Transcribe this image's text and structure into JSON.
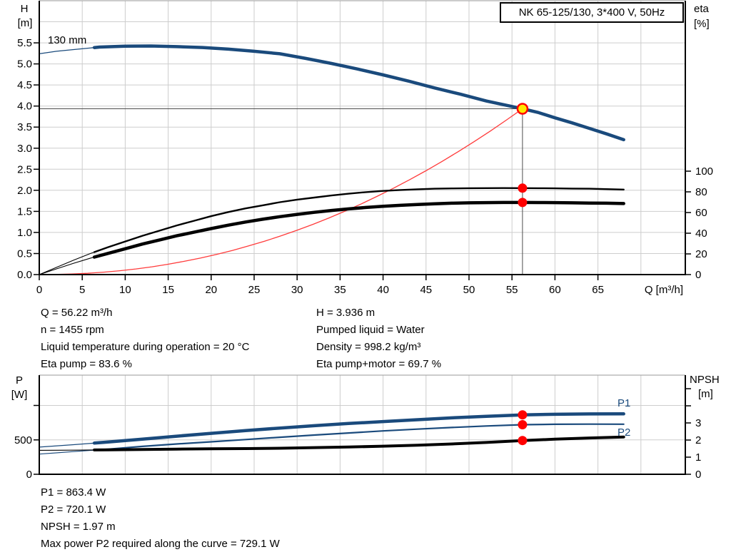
{
  "colors": {
    "curve_blue": "#1a4a7c",
    "curve_black": "#000000",
    "duty_red": "#ff3b3b",
    "marker_red": "#ff0000",
    "op_yellow": "#ffe800",
    "grid": "#cdcdcd",
    "border_gray": "#999999",
    "crosshair": "#4d4d4d",
    "axis": "#000000"
  },
  "info_top": {
    "left": [
      "Q = 56.22 m³/h",
      "n = 1455 rpm",
      "Liquid temperature during operation = 20 °C",
      "Eta pump = 83.6 %"
    ],
    "right": [
      "H = 3.936 m",
      "Pumped liquid = Water",
      "Density = 998.2 kg/m³",
      "Eta pump+motor = 69.7 %"
    ]
  },
  "info_bottom": [
    "P1 = 863.4 W",
    "P2 = 720.1 W",
    "NPSH = 1.97 m",
    "Max power P2 required along the curve = 729.1 W"
  ],
  "chart_data": [
    {
      "type": "line",
      "title": "NK 65-125/130, 3*400 V, 50Hz",
      "x_axis": {
        "label": "Q [m³/h]",
        "min": 0,
        "max": 75.2,
        "grid_step": 5,
        "tick_values": [
          0,
          5,
          10,
          15,
          20,
          25,
          30,
          35,
          40,
          45,
          50,
          55,
          60,
          65
        ],
        "tick_labels": [
          "0",
          "5",
          "10",
          "15",
          "20",
          "25",
          "30",
          "35",
          "40",
          "45",
          "50",
          "55",
          "60",
          "65"
        ]
      },
      "left_axis": {
        "label_lines": [
          "H",
          "[m]"
        ],
        "min": 0,
        "max": 6.5,
        "tick_values": [
          0,
          0.5,
          1,
          1.5,
          2,
          2.5,
          3,
          3.5,
          4,
          4.5,
          5,
          5.5
        ],
        "tick_labels": [
          "0.0",
          "0.5",
          "1.0",
          "1.5",
          "2.0",
          "2.5",
          "3.0",
          "3.5",
          "4.0",
          "4.5",
          "5.0",
          "5.5"
        ]
      },
      "right_axis": {
        "label_lines": [
          "eta",
          "[%]"
        ],
        "min": 0,
        "tick_values": [
          0,
          20,
          40,
          60,
          80,
          100
        ],
        "tick_labels": [
          "0",
          "20",
          "40",
          "60",
          "80",
          "100"
        ]
      },
      "grid": true,
      "series": [
        {
          "name": "head",
          "label": "130 mm",
          "axis": "left",
          "color_key": "curve_blue",
          "width_thin": 1.3,
          "width_thick": 4.5,
          "split_q": 6.4,
          "points": [
            [
              0,
              5.24
            ],
            [
              2,
              5.3
            ],
            [
              4,
              5.34
            ],
            [
              7,
              5.4
            ],
            [
              10,
              5.42
            ],
            [
              13,
              5.425
            ],
            [
              16,
              5.41
            ],
            [
              19,
              5.39
            ],
            [
              22,
              5.35
            ],
            [
              25,
              5.3
            ],
            [
              28,
              5.24
            ],
            [
              31,
              5.13
            ],
            [
              34,
              5.01
            ],
            [
              37,
              4.88
            ],
            [
              40,
              4.74
            ],
            [
              43,
              4.59
            ],
            [
              46,
              4.43
            ],
            [
              49,
              4.28
            ],
            [
              52,
              4.12
            ],
            [
              55,
              3.99
            ],
            [
              56.22,
              3.936
            ],
            [
              58,
              3.85
            ],
            [
              60,
              3.72
            ],
            [
              62,
              3.6
            ],
            [
              64,
              3.47
            ],
            [
              66,
              3.34
            ],
            [
              68,
              3.2
            ]
          ]
        },
        {
          "name": "eta_pump",
          "axis": "right",
          "color_key": "curve_black",
          "width_thin": 1.1,
          "width_thick": 2.4,
          "split_q": 6.4,
          "points": [
            [
              0,
              0
            ],
            [
              2,
              7
            ],
            [
              4,
              14
            ],
            [
              6,
              20.5
            ],
            [
              8,
              26.5
            ],
            [
              10,
              32
            ],
            [
              12,
              37.5
            ],
            [
              14,
              42.5
            ],
            [
              16,
              47.5
            ],
            [
              18,
              52
            ],
            [
              20,
              56.5
            ],
            [
              22,
              60.5
            ],
            [
              24,
              64
            ],
            [
              26,
              67
            ],
            [
              28,
              70
            ],
            [
              30,
              72.5
            ],
            [
              32,
              74.5
            ],
            [
              34,
              76.5
            ],
            [
              36,
              78.2
            ],
            [
              38,
              79.7
            ],
            [
              40,
              80.9
            ],
            [
              42,
              81.8
            ],
            [
              44,
              82.5
            ],
            [
              46,
              83
            ],
            [
              48,
              83.3
            ],
            [
              50,
              83.5
            ],
            [
              52,
              83.6
            ],
            [
              54,
              83.65
            ],
            [
              56.22,
              83.6
            ],
            [
              58,
              83.5
            ],
            [
              60,
              83.4
            ],
            [
              62,
              83.2
            ],
            [
              64,
              83
            ],
            [
              66,
              82.6
            ],
            [
              68,
              82.2
            ]
          ]
        },
        {
          "name": "eta_pump_motor",
          "axis": "right",
          "color_key": "curve_black",
          "width_thin": 1.1,
          "width_thick": 4.5,
          "split_q": 6.4,
          "points": [
            [
              0,
              0
            ],
            [
              2,
              5.5
            ],
            [
              4,
              11
            ],
            [
              6,
              16
            ],
            [
              8,
              20.5
            ],
            [
              10,
              25
            ],
            [
              12,
              29.5
            ],
            [
              14,
              33.5
            ],
            [
              16,
              37.5
            ],
            [
              18,
              41
            ],
            [
              20,
              44.5
            ],
            [
              22,
              47.8
            ],
            [
              24,
              50.8
            ],
            [
              26,
              53.5
            ],
            [
              28,
              56
            ],
            [
              30,
              58.2
            ],
            [
              32,
              60.2
            ],
            [
              34,
              62
            ],
            [
              36,
              63.5
            ],
            [
              38,
              64.9
            ],
            [
              40,
              66
            ],
            [
              42,
              67
            ],
            [
              44,
              67.8
            ],
            [
              46,
              68.5
            ],
            [
              48,
              69
            ],
            [
              50,
              69.4
            ],
            [
              52,
              69.6
            ],
            [
              54,
              69.7
            ],
            [
              56.22,
              69.7
            ],
            [
              58,
              69.65
            ],
            [
              60,
              69.6
            ],
            [
              62,
              69.4
            ],
            [
              64,
              69.2
            ],
            [
              66,
              69
            ],
            [
              68,
              68.7
            ]
          ]
        }
      ],
      "duty_curve": {
        "name": "duty_parabola",
        "color_key": "duty_red",
        "exponent": 2.1
      },
      "operating_point": {
        "q": 56.22,
        "values": {
          "head": 3.936,
          "eta_pump": 83.6,
          "eta_pump_motor": 69.7
        },
        "crosshair": true
      }
    },
    {
      "type": "line",
      "x_axis": {
        "label": "",
        "min": 0,
        "max": 75.2,
        "grid_step": 5,
        "tick_values": [],
        "tick_labels": []
      },
      "left_axis": {
        "label_lines": [
          "P",
          "[W]"
        ],
        "min": 0,
        "tick_values": [
          0,
          500,
          1000
        ],
        "tick_labels": [
          "0",
          "500",
          ""
        ]
      },
      "right_axis": {
        "label_lines": [
          "NPSH",
          "[m]"
        ],
        "min": 0,
        "tick_values": [
          0,
          1,
          2,
          3,
          4,
          5
        ],
        "tick_labels": [
          "0",
          "1",
          "2",
          "3",
          "",
          ""
        ]
      },
      "grid": true,
      "series": [
        {
          "name": "p1",
          "label": "P1",
          "axis": "left",
          "color_key": "curve_blue",
          "width_thin": 1.3,
          "width_thick": 4.5,
          "split_q": 6.4,
          "points": [
            [
              0,
              395
            ],
            [
              4,
              430
            ],
            [
              8,
              468
            ],
            [
              12,
              510
            ],
            [
              16,
              553
            ],
            [
              20,
              595
            ],
            [
              24,
              635
            ],
            [
              28,
              672
            ],
            [
              32,
              706
            ],
            [
              36,
              738
            ],
            [
              40,
              766
            ],
            [
              44,
              793
            ],
            [
              48,
              820
            ],
            [
              52,
              843
            ],
            [
              56.22,
              863
            ],
            [
              60,
              872
            ],
            [
              64,
              877
            ],
            [
              68,
              878
            ]
          ]
        },
        {
          "name": "p2",
          "label": "P2",
          "axis": "left",
          "color_key": "curve_blue",
          "width_thin": 1.2,
          "width_thick": 2.2,
          "split_q": 6.4,
          "points": [
            [
              0,
              293
            ],
            [
              4,
              330
            ],
            [
              8,
              365
            ],
            [
              12,
              405
            ],
            [
              16,
              440
            ],
            [
              20,
              472
            ],
            [
              24,
              505
            ],
            [
              28,
              538
            ],
            [
              32,
              570
            ],
            [
              36,
              600
            ],
            [
              40,
              630
            ],
            [
              44,
              656
            ],
            [
              48,
              680
            ],
            [
              52,
              702
            ],
            [
              56.22,
              720
            ],
            [
              60,
              726
            ],
            [
              64,
              729
            ],
            [
              68,
              727
            ]
          ]
        },
        {
          "name": "npsh",
          "axis": "right",
          "color_key": "curve_black",
          "width_thin": 1.1,
          "width_thick": 4,
          "split_q": 6.4,
          "points": [
            [
              0,
              1.4
            ],
            [
              4,
              1.41
            ],
            [
              8,
              1.43
            ],
            [
              12,
              1.45
            ],
            [
              16,
              1.47
            ],
            [
              20,
              1.49
            ],
            [
              24,
              1.5
            ],
            [
              28,
              1.52
            ],
            [
              32,
              1.56
            ],
            [
              36,
              1.59
            ],
            [
              40,
              1.64
            ],
            [
              44,
              1.7
            ],
            [
              48,
              1.77
            ],
            [
              52,
              1.86
            ],
            [
              56.22,
              1.97
            ],
            [
              60,
              2.05
            ],
            [
              64,
              2.12
            ],
            [
              68,
              2.18
            ]
          ]
        }
      ],
      "operating_point": {
        "q": 56.22,
        "values": {
          "p1": 863.4,
          "p2": 720.1,
          "npsh": 1.97
        },
        "crosshair": false
      }
    }
  ]
}
